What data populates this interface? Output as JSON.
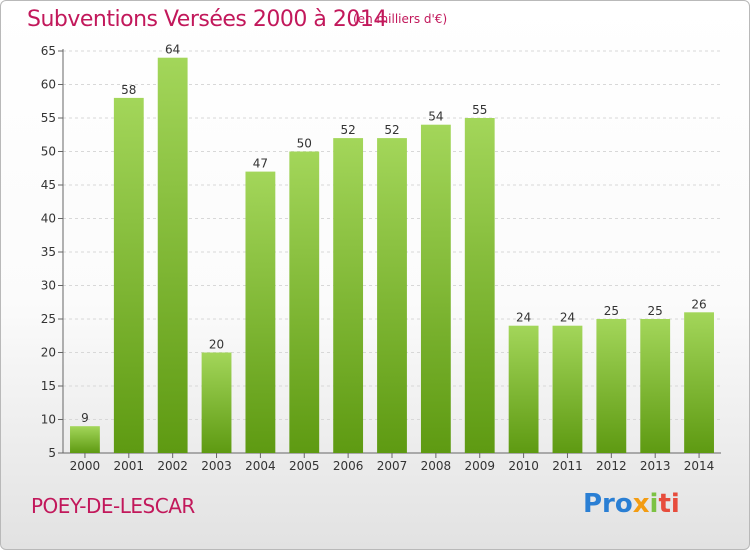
{
  "header": {
    "title": "Subventions Versées 2000 à 2014",
    "subtitle": "(en milliers d'€)"
  },
  "footer": {
    "commune": "POEY-DE-LESCAR",
    "logo": {
      "part1": "Pro",
      "part2": "x",
      "part3": "i",
      "part4": "ti"
    }
  },
  "colors": {
    "bar_top": "#a3d65a",
    "bar_bottom": "#5e9a12",
    "title": "#c2185b",
    "grid": "#d8d8d8"
  },
  "chart_data": {
    "type": "bar",
    "title": "Subventions Versées 2000 à 2014",
    "subtitle": "(en milliers d'€)",
    "categories": [
      "2000",
      "2001",
      "2002",
      "2003",
      "2004",
      "2005",
      "2006",
      "2007",
      "2008",
      "2009",
      "2010",
      "2011",
      "2012",
      "2013",
      "2014"
    ],
    "values": [
      9,
      58,
      64,
      20,
      47,
      50,
      52,
      52,
      54,
      55,
      24,
      24,
      25,
      25,
      26
    ],
    "ylim": [
      5,
      65
    ],
    "yticks": [
      5,
      10,
      15,
      20,
      25,
      30,
      35,
      40,
      45,
      50,
      55,
      60,
      65
    ],
    "grid": true,
    "xlabel": "",
    "ylabel": ""
  }
}
